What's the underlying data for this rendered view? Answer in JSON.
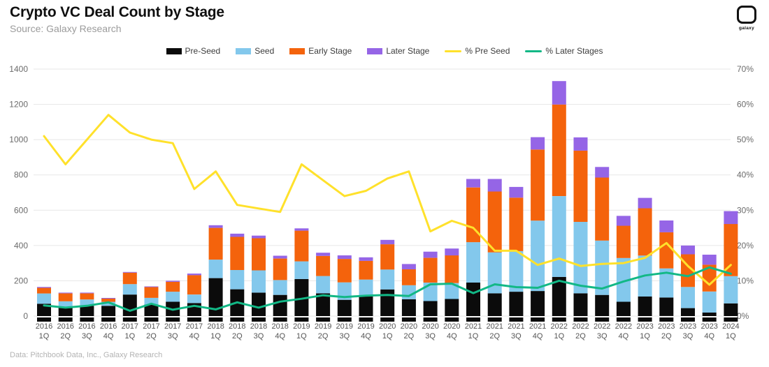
{
  "header": {
    "title": "Crypto VC Deal Count by Stage",
    "source": "Source: Galaxy Research",
    "logo_text": "galaxy"
  },
  "footer": {
    "note": "Data: Pitchbook Data, Inc., Galaxy Research"
  },
  "chart_data": {
    "type": "bar",
    "subtype": "stacked-bars-with-percent-lines",
    "grid": true,
    "legend_position": "top-center",
    "categories": [
      [
        "2016",
        "1Q"
      ],
      [
        "2016",
        "2Q"
      ],
      [
        "2016",
        "3Q"
      ],
      [
        "2016",
        "4Q"
      ],
      [
        "2017",
        "1Q"
      ],
      [
        "2017",
        "2Q"
      ],
      [
        "2017",
        "3Q"
      ],
      [
        "2017",
        "4Q"
      ],
      [
        "2018",
        "1Q"
      ],
      [
        "2018",
        "2Q"
      ],
      [
        "2018",
        "3Q"
      ],
      [
        "2018",
        "4Q"
      ],
      [
        "2019",
        "1Q"
      ],
      [
        "2019",
        "2Q"
      ],
      [
        "2019",
        "3Q"
      ],
      [
        "2019",
        "4Q"
      ],
      [
        "2020",
        "1Q"
      ],
      [
        "2020",
        "2Q"
      ],
      [
        "2020",
        "3Q"
      ],
      [
        "2020",
        "4Q"
      ],
      [
        "2021",
        "1Q"
      ],
      [
        "2021",
        "2Q"
      ],
      [
        "2021",
        "3Q"
      ],
      [
        "2021",
        "4Q"
      ],
      [
        "2022",
        "1Q"
      ],
      [
        "2022",
        "2Q"
      ],
      [
        "2022",
        "3Q"
      ],
      [
        "2022",
        "4Q"
      ],
      [
        "2023",
        "1Q"
      ],
      [
        "2023",
        "2Q"
      ],
      [
        "2023",
        "3Q"
      ],
      [
        "2023",
        "4Q"
      ],
      [
        "2024",
        "1Q"
      ]
    ],
    "bar_series": [
      {
        "name": "Pre-Seed",
        "color": "#0b0b0b",
        "values": [
          70,
          52,
          58,
          58,
          122,
          65,
          81,
          74,
          215,
          152,
          133,
          120,
          210,
          129,
          92,
          111,
          151,
          95,
          85,
          97,
          190,
          129,
          138,
          142,
          222,
          129,
          120,
          81,
          111,
          105,
          45,
          20,
          72
        ]
      },
      {
        "name": "Seed",
        "color": "#83c8ec",
        "values": [
          58,
          32,
          36,
          23,
          59,
          38,
          57,
          48,
          105,
          109,
          126,
          84,
          100,
          98,
          99,
          96,
          113,
          80,
          105,
          90,
          229,
          232,
          230,
          399,
          458,
          405,
          308,
          248,
          232,
          165,
          120,
          119,
          154
        ]
      },
      {
        "name": "Early Stage",
        "color": "#f4630c",
        "values": [
          32,
          45,
          35,
          18,
          65,
          61,
          56,
          110,
          180,
          188,
          182,
          122,
          174,
          114,
          133,
          106,
          143,
          90,
          140,
          157,
          310,
          345,
          303,
          403,
          519,
          404,
          357,
          183,
          268,
          205,
          185,
          152,
          296
        ]
      },
      {
        "name": "Later Stage",
        "color": "#9565e6",
        "values": [
          5,
          4,
          4,
          4,
          4,
          4,
          6,
          9,
          15,
          18,
          15,
          16,
          13,
          18,
          20,
          20,
          25,
          30,
          35,
          39,
          48,
          71,
          61,
          70,
          133,
          75,
          60,
          56,
          59,
          67,
          50,
          57,
          73
        ]
      }
    ],
    "line_series": [
      {
        "name": "% Pre Seed",
        "color": "#ffe12b",
        "axis": "right",
        "values": [
          51,
          43,
          50,
          57,
          52,
          50,
          49,
          36,
          41,
          31.5,
          30.5,
          29.5,
          43,
          38.5,
          34,
          35.5,
          39,
          41,
          24,
          27,
          25,
          18.5,
          18.5,
          14.5,
          16.3,
          14.2,
          14.8,
          15,
          16.5,
          20.7,
          14.2,
          8.9,
          14.5
        ]
      },
      {
        "name": "% Later Stages",
        "color": "#12b886",
        "axis": "right",
        "values": [
          3,
          2.4,
          2.9,
          3.9,
          1.5,
          3.5,
          1.8,
          2.9,
          1.9,
          3.9,
          2.4,
          4.1,
          4.9,
          5.9,
          5.4,
          5.8,
          6,
          5.7,
          9,
          9.2,
          6.5,
          9,
          8.2,
          8,
          10,
          8.6,
          7.8,
          9.8,
          11.5,
          12.3,
          11.3,
          13.8,
          12
        ]
      }
    ],
    "left_axis": {
      "min": 0,
      "max": 1400,
      "ticks": [
        0,
        200,
        400,
        600,
        800,
        1000,
        1200,
        1400
      ]
    },
    "right_axis": {
      "min": 0,
      "max": 70,
      "tick_values": [
        0,
        10,
        20,
        30,
        40,
        50,
        60,
        70
      ],
      "ticks": [
        "0%",
        "10%",
        "20%",
        "30%",
        "40%",
        "50%",
        "60%",
        "70%"
      ]
    }
  }
}
